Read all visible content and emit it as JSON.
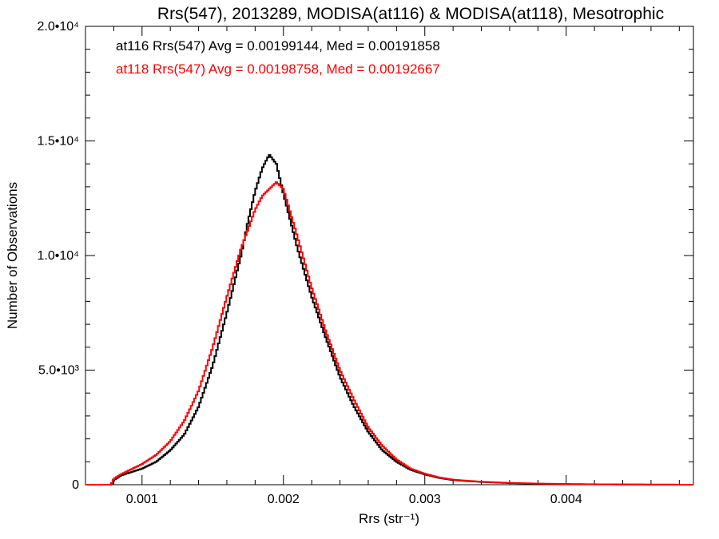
{
  "chart_data": {
    "type": "line",
    "title": "Rrs(547), 2013289, MODISA(at116) & MODISA(at118), Mesotrophic",
    "xlabel": "Rrs (str⁻¹)",
    "ylabel": "Number of Observations",
    "xlim": [
      0.0006,
      0.0049
    ],
    "ylim": [
      0,
      20000
    ],
    "x_ticks": [
      {
        "value": 0.001,
        "label": "0.001"
      },
      {
        "value": 0.002,
        "label": "0.002"
      },
      {
        "value": 0.003,
        "label": "0.003"
      },
      {
        "value": 0.004,
        "label": "0.004"
      }
    ],
    "y_ticks": [
      {
        "value": 0,
        "label": "0"
      },
      {
        "value": 5000,
        "label": "5.0•10³"
      },
      {
        "value": 10000,
        "label": "1.0•10⁴"
      },
      {
        "value": 15000,
        "label": "1.5•10⁴"
      },
      {
        "value": 20000,
        "label": "2.0•10⁴"
      }
    ],
    "grid": false,
    "legend_position": "top-left",
    "series": [
      {
        "name": "at116",
        "color": "#000000",
        "legend_text": "at116 Rrs(547) Avg = 0.00199144, Med = 0.00191858",
        "x": [
          0.0006,
          0.0007,
          0.00078,
          0.0008,
          0.00085,
          0.0009,
          0.001,
          0.0011,
          0.0012,
          0.0013,
          0.0014,
          0.0015,
          0.0016,
          0.0017,
          0.00175,
          0.0018,
          0.00185,
          0.0019,
          0.00195,
          0.002,
          0.0021,
          0.0022,
          0.0023,
          0.0024,
          0.0025,
          0.0026,
          0.0027,
          0.0028,
          0.0029,
          0.003,
          0.0031,
          0.0032,
          0.0034,
          0.0036,
          0.0038,
          0.004,
          0.0042,
          0.0044,
          0.0046,
          0.0049
        ],
        "y": [
          0,
          0,
          0,
          200,
          400,
          500,
          700,
          1000,
          1500,
          2200,
          3400,
          5200,
          7500,
          10000,
          11500,
          12800,
          13800,
          14400,
          14000,
          12700,
          10300,
          8200,
          6400,
          4700,
          3400,
          2300,
          1500,
          1000,
          650,
          450,
          300,
          200,
          120,
          70,
          40,
          25,
          15,
          10,
          5,
          0
        ]
      },
      {
        "name": "at118",
        "color": "#ff0000",
        "legend_text": "at118 Rrs(547) Avg = 0.00198758, Med = 0.00192667",
        "x": [
          0.0006,
          0.0007,
          0.00078,
          0.0008,
          0.00085,
          0.0009,
          0.001,
          0.0011,
          0.0012,
          0.0013,
          0.0014,
          0.0015,
          0.0016,
          0.0017,
          0.0018,
          0.00185,
          0.0019,
          0.00195,
          0.002,
          0.0021,
          0.0022,
          0.0023,
          0.0024,
          0.0025,
          0.0026,
          0.0027,
          0.0028,
          0.0029,
          0.003,
          0.0031,
          0.0032,
          0.0034,
          0.0036,
          0.0038,
          0.004,
          0.0042,
          0.0044,
          0.0046,
          0.0049
        ],
        "y": [
          0,
          0,
          0,
          250,
          450,
          600,
          900,
          1300,
          1900,
          2800,
          4100,
          6000,
          8200,
          10300,
          12000,
          12600,
          12900,
          13200,
          12900,
          10800,
          8600,
          6700,
          5000,
          3700,
          2500,
          1700,
          1100,
          700,
          480,
          320,
          220,
          130,
          80,
          50,
          30,
          20,
          12,
          6,
          0
        ]
      }
    ]
  }
}
